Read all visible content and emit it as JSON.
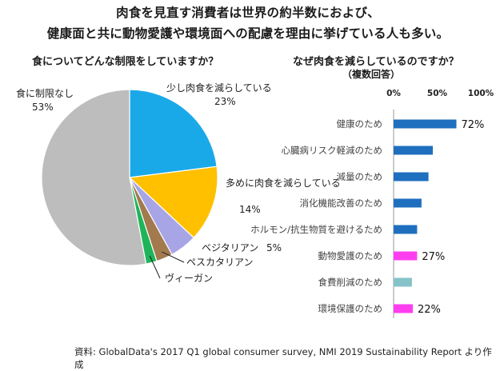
{
  "titles": {
    "line1": "肉食を見直す消費者は世界の約半数におよび、",
    "line2": "健康面と共に動物愛護や環境面への配慮を理由に挙げている人も多い。"
  },
  "source": "資料: GlobalData's 2017 Q1 global consumer survey, NMI 2019 Sustainability Report より作成",
  "chart_data": [
    {
      "type": "pie",
      "title": "食についてどんな制限をしていますか？",
      "slices": [
        {
          "label": "少し肉食を減らしている",
          "value": 23,
          "value_label": "23%",
          "color": "#1aa9e8"
        },
        {
          "label": "多めに肉食を減らしている",
          "value": 14,
          "value_label": "14%",
          "color": "#ffc000"
        },
        {
          "label": "ベジタリアン",
          "value": 5,
          "value_label": "5%",
          "color": "#a8a5e6"
        },
        {
          "label": "ペスカタリアン",
          "value": 3,
          "value_label": "",
          "color": "#a27a4e"
        },
        {
          "label": "ヴィーガン",
          "value": 2,
          "value_label": "",
          "color": "#1fb45a"
        },
        {
          "label": "食に制限なし",
          "value": 53,
          "value_label": "53%",
          "color": "#bdbdbd"
        }
      ]
    },
    {
      "type": "bar",
      "orientation": "horizontal",
      "title": "なぜ肉食を減らしているのですか？",
      "subtitle": "（複数回答）",
      "xlim": [
        0,
        100
      ],
      "xticks": [
        "0%",
        "50%",
        "100%"
      ],
      "categories": [
        "健康のため",
        "心臓病リスク軽減のため",
        "減量のため",
        "消化機能改善のため",
        "ホルモン/抗生物質を避けるため",
        "動物愛護のため",
        "食費削減のため",
        "環境保護のため"
      ],
      "values": [
        72,
        45,
        40,
        32,
        27,
        27,
        21,
        22
      ],
      "value_labels": [
        "72%",
        "",
        "",
        "",
        "",
        "27%",
        "",
        "22%"
      ],
      "colors": [
        "#1f6fbf",
        "#1f6fbf",
        "#1f6fbf",
        "#1f6fbf",
        "#1f6fbf",
        "#ff3ef0",
        "#85c3c9",
        "#ff3ef0"
      ]
    }
  ]
}
